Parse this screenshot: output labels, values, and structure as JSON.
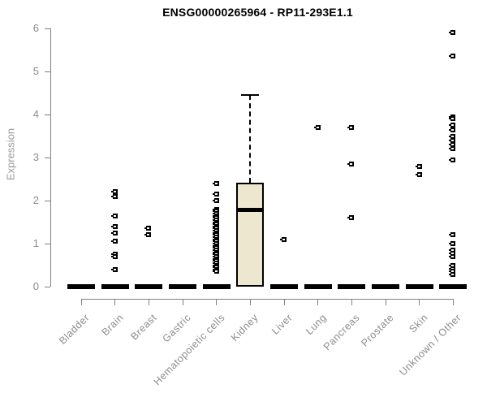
{
  "chart_data": {
    "type": "boxplot",
    "title": "ENSG00000265964 - RP11-293E1.1",
    "ylabel": "Expression",
    "ylim": [
      0,
      6
    ],
    "yticks": [
      0,
      1,
      2,
      3,
      4,
      5,
      6
    ],
    "grid": false,
    "legend": "none",
    "categories": [
      "Bladder",
      "Brain",
      "Breast",
      "Gastric",
      "Hematopoietic cells",
      "Kidney",
      "Liver",
      "Lung",
      "Pancreas",
      "Prostate",
      "Skin",
      "Unknown / Other"
    ],
    "colors": {
      "box_fill": "#ece7ce",
      "box_border": "#000000",
      "point": "#000000",
      "axis": "#808080",
      "axis_text": "#8c8c8c"
    },
    "groups": [
      {
        "category": "Bladder",
        "median": 0,
        "points": []
      },
      {
        "category": "Brain",
        "median": 0,
        "points": [
          2.2,
          2.1,
          1.65,
          1.4,
          1.25,
          1.05,
          0.75,
          0.7,
          0.4
        ]
      },
      {
        "category": "Breast",
        "median": 0,
        "points": [
          1.35,
          1.2
        ]
      },
      {
        "category": "Gastric",
        "median": 0,
        "points": []
      },
      {
        "category": "Hematopoietic cells",
        "median": 0,
        "points": [
          2.4,
          2.15,
          2.0,
          1.8,
          1.75,
          1.7,
          1.65,
          1.6,
          1.55,
          1.5,
          1.45,
          1.4,
          1.35,
          1.3,
          1.25,
          1.2,
          1.15,
          1.1,
          1.05,
          1.0,
          0.95,
          0.9,
          0.85,
          0.8,
          0.75,
          0.7,
          0.65,
          0.6,
          0.55,
          0.5,
          0.45,
          0.4,
          0.35
        ]
      },
      {
        "category": "Kidney",
        "box": {
          "lower_whisker": 0,
          "q1": 0,
          "median": 1.8,
          "q3": 2.42,
          "upper_whisker": 4.45
        },
        "points": []
      },
      {
        "category": "Liver",
        "median": 0,
        "points": [
          1.1
        ]
      },
      {
        "category": "Lung",
        "median": 0,
        "points": [
          3.7
        ]
      },
      {
        "category": "Pancreas",
        "median": 0,
        "points": [
          3.7,
          2.85,
          1.6
        ]
      },
      {
        "category": "Prostate",
        "median": 0,
        "points": []
      },
      {
        "category": "Skin",
        "median": 0,
        "points": [
          2.8,
          2.6
        ]
      },
      {
        "category": "Unknown / Other",
        "median": 0,
        "points": [
          5.9,
          5.35,
          3.95,
          3.9,
          3.75,
          3.65,
          3.5,
          3.4,
          3.3,
          3.2,
          2.95,
          1.2,
          1.0,
          0.85,
          0.78,
          0.7,
          0.5,
          0.42,
          0.35,
          0.28
        ]
      }
    ]
  }
}
